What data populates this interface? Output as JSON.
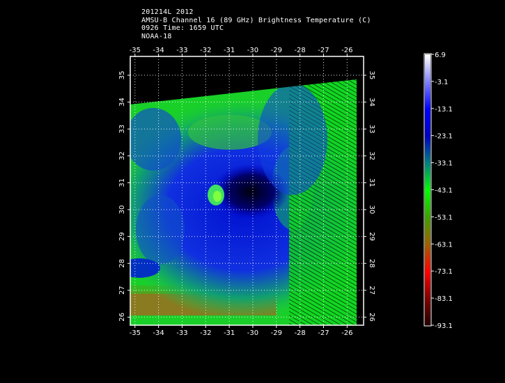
{
  "header": {
    "line1": "201214L 2012",
    "line2": "AMSU-B Channel 16 (89 GHz) Brightness Temperature (C)",
    "line3": "0926 Time: 1659 UTC",
    "line4": "NOAA-18"
  },
  "map": {
    "lon_ticks": [
      "-35",
      "-34",
      "-33",
      "-32",
      "-31",
      "-30",
      "-29",
      "-28",
      "-27",
      "-26"
    ],
    "lat_ticks": [
      "26",
      "27",
      "28",
      "29",
      "30",
      "31",
      "32",
      "33",
      "34",
      "35"
    ],
    "lon_range": [
      -35.2,
      -25.3
    ],
    "lat_range": [
      25.7,
      35.7
    ],
    "grid": true
  },
  "colorbar": {
    "labels": [
      "6.9",
      "-3.1",
      "-13.1",
      "-23.1",
      "-33.1",
      "-43.1",
      "-53.1",
      "-63.1",
      "-73.1",
      "-83.1",
      "-93.1"
    ],
    "colors": [
      "#ffffff",
      "#8080ff",
      "#0000ff",
      "#0000c0",
      "#008080",
      "#00ff00",
      "#40a000",
      "#a06000",
      "#ff0000",
      "#800000",
      "#200000"
    ]
  }
}
